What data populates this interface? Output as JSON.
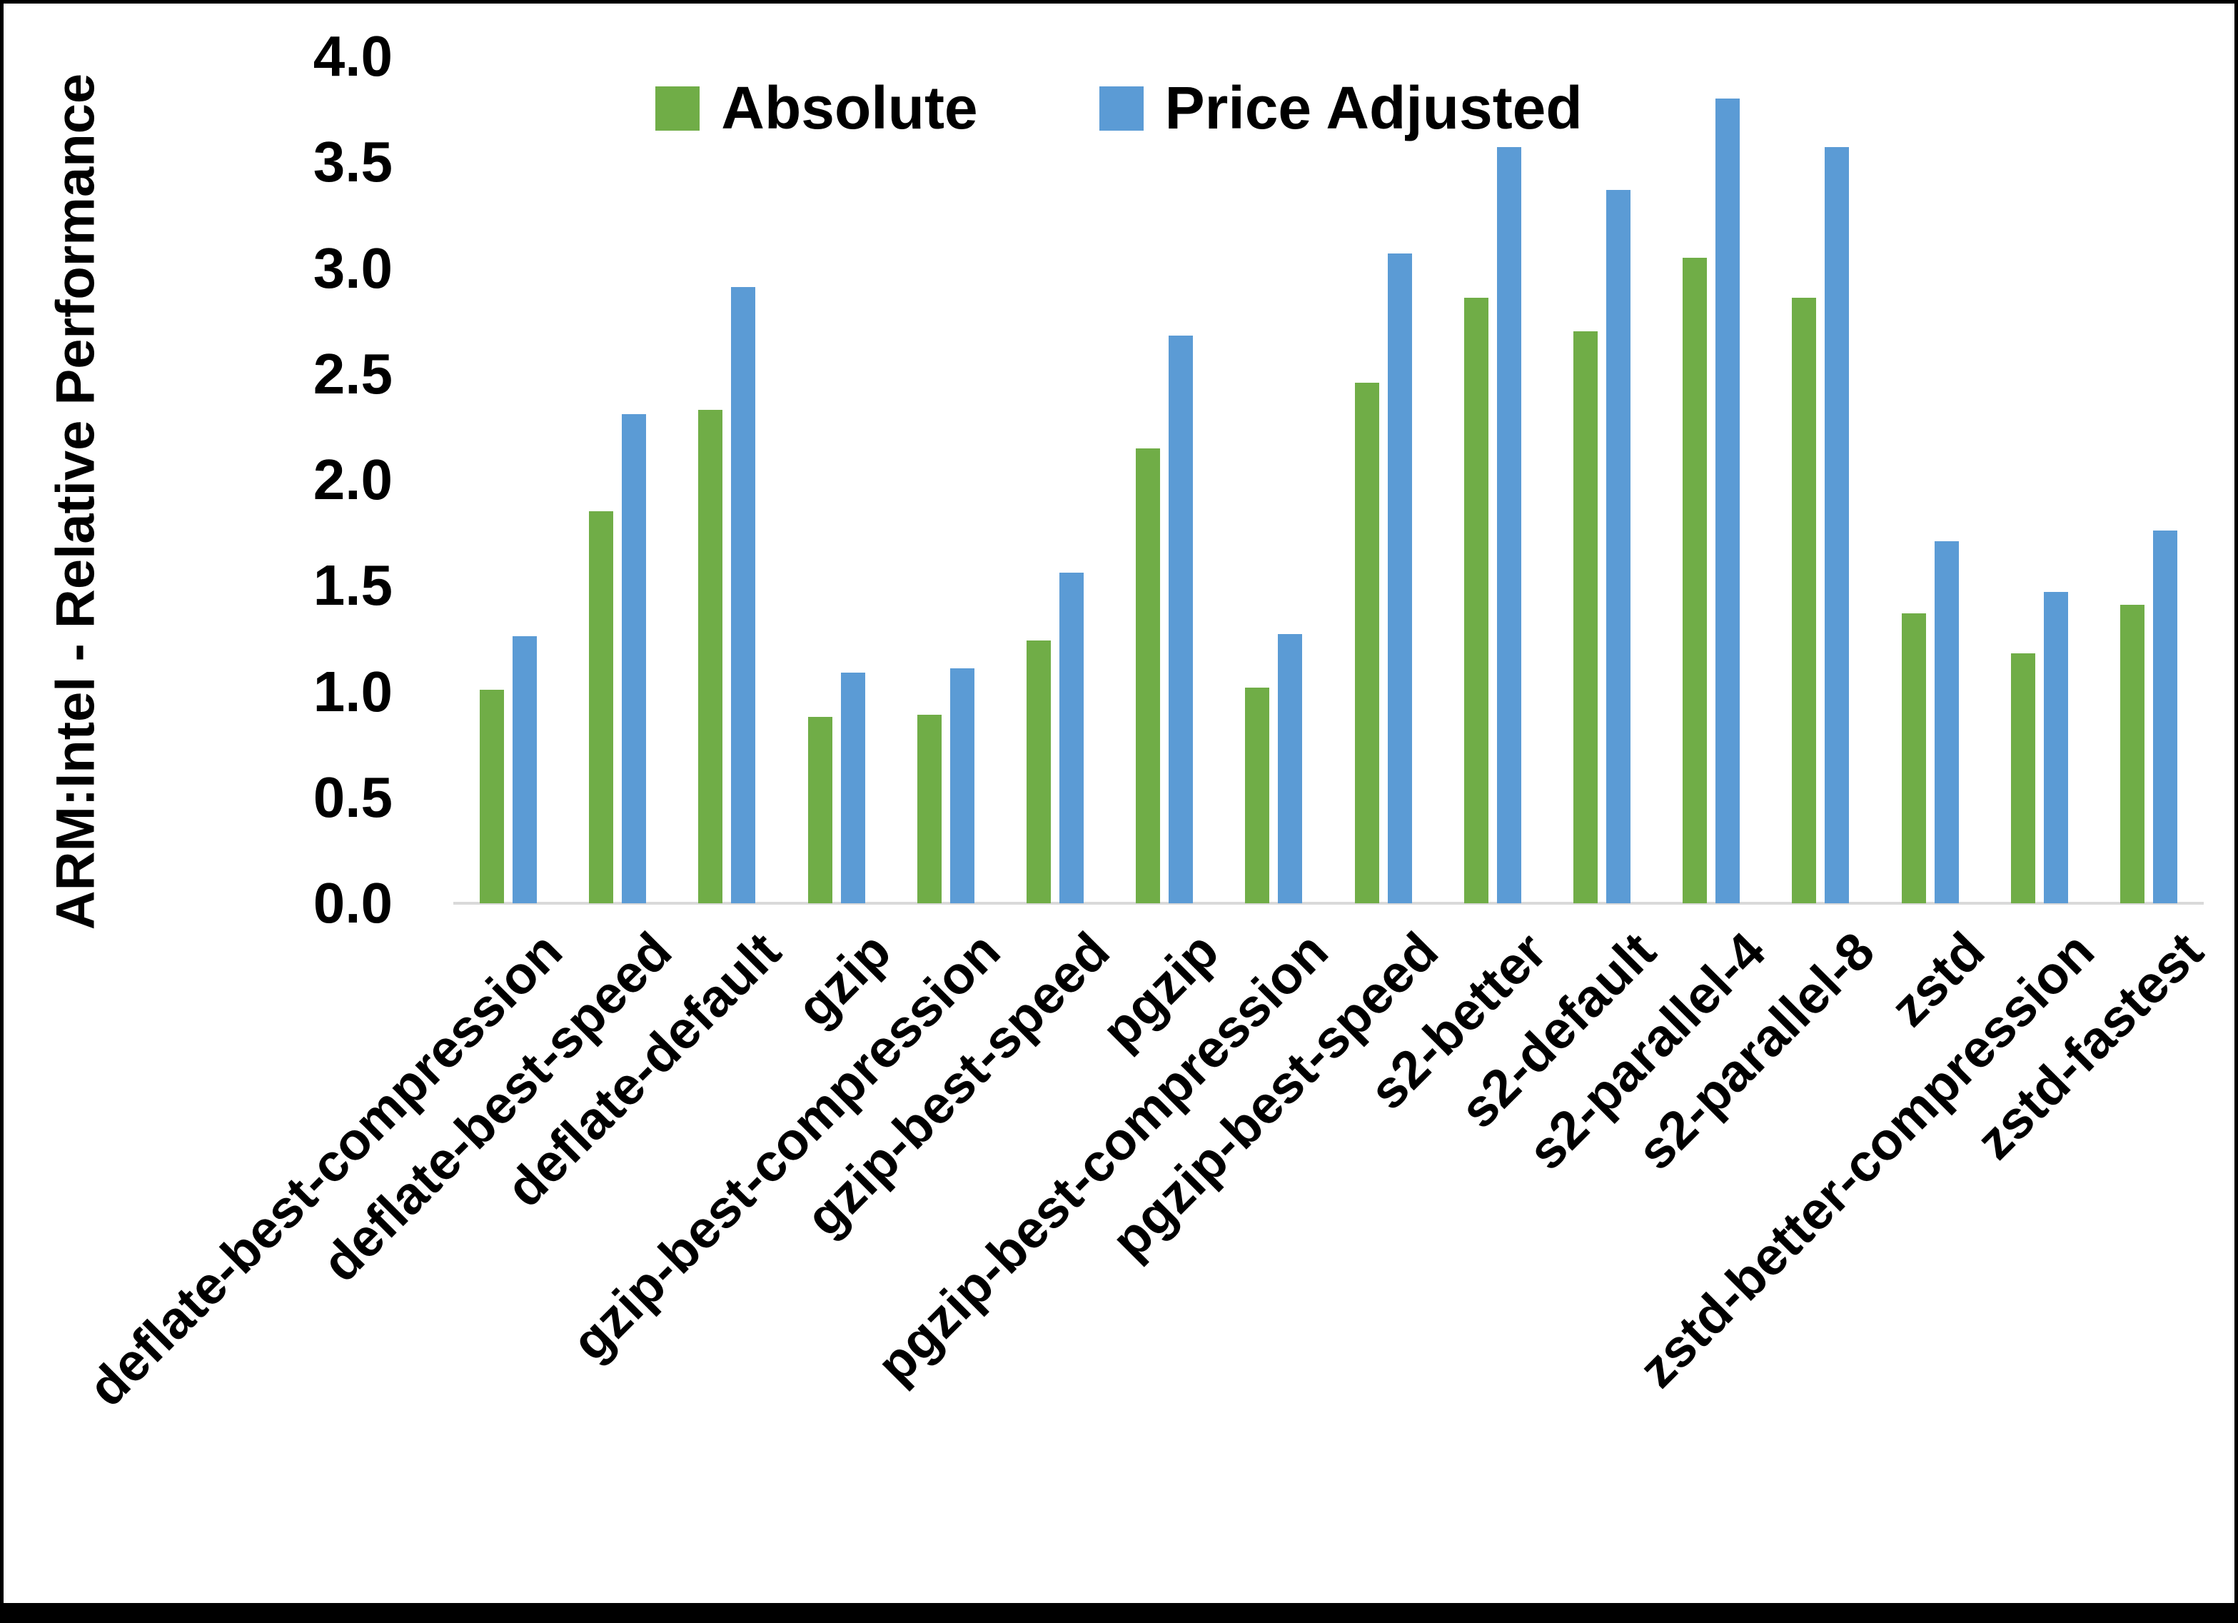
{
  "chart_data": {
    "type": "bar",
    "title": "",
    "xlabel": "",
    "ylabel": "ARM:Intel - Relative Performance",
    "ylim": [
      0,
      4
    ],
    "ytick_step": 0.5,
    "ytick_labels": [
      "0.0",
      "0.5",
      "1.0",
      "1.5",
      "2.0",
      "2.5",
      "3.0",
      "3.5",
      "4.0"
    ],
    "grid": false,
    "legend_position": "top-center",
    "categories": [
      "deflate-best-compression",
      "deflate-best-speed",
      "deflate-default",
      "gzip",
      "gzip-best-compression",
      "gzip-best-speed",
      "pgzip",
      "pgzip-best-compression",
      "pgzip-best-speed",
      "s2-better",
      "s2-default",
      "s2-parallel-4",
      "s2-parallel-8",
      "zstd",
      "zstd-better-compression",
      "zstd-fastest"
    ],
    "series": [
      {
        "name": "Absolute",
        "color": "#70AD47",
        "values": [
          1.01,
          1.85,
          2.33,
          0.88,
          0.89,
          1.24,
          2.15,
          1.02,
          2.46,
          2.86,
          2.7,
          3.05,
          2.86,
          1.37,
          1.18,
          1.41
        ]
      },
      {
        "name": "Price Adjusted",
        "color": "#5B9BD5",
        "values": [
          1.26,
          2.31,
          2.91,
          1.09,
          1.11,
          1.56,
          2.68,
          1.27,
          3.07,
          3.57,
          3.37,
          3.8,
          3.57,
          1.71,
          1.47,
          1.76
        ]
      }
    ],
    "colors": {
      "axis_line": "#d9d9d9",
      "text": "#000000",
      "background": "#ffffff"
    }
  }
}
